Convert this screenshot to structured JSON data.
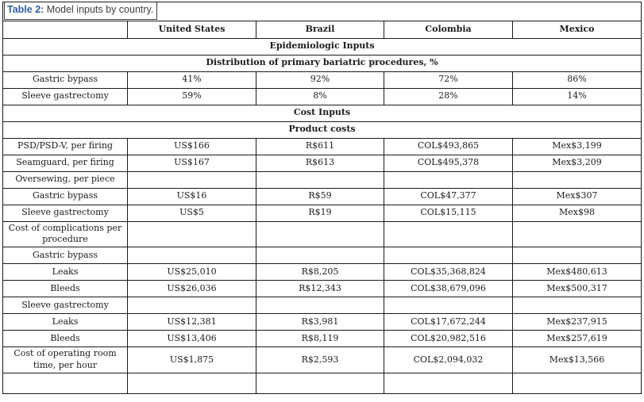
{
  "title": {
    "prefix": "Table 2:",
    "text": " Model inputs by country."
  },
  "colors": {
    "caption_blue": "#2E5FA7",
    "title_text": "#3F3F3F",
    "table_text": "#1C1C1C",
    "border": "#1A1A1A"
  },
  "columns": [
    "",
    "United States",
    "Brazil",
    "Colombia",
    "Mexico"
  ],
  "rows": [
    {
      "type": "section",
      "label": "Epidemiologic Inputs"
    },
    {
      "type": "section",
      "label": "Distribution of primary bariatric procedures, %"
    },
    {
      "type": "data",
      "label": "Gastric bypass",
      "values": [
        "41%",
        "92%",
        "72%",
        "86%"
      ]
    },
    {
      "type": "data",
      "label": "Sleeve gastrectomy",
      "values": [
        "59%",
        "8%",
        "28%",
        "14%"
      ]
    },
    {
      "type": "section",
      "label": "Cost Inputs"
    },
    {
      "type": "section",
      "label": "Product costs"
    },
    {
      "type": "data",
      "label": "PSD/PSD-V, per firing",
      "values": [
        "US$166",
        "R$611",
        "COL$493,865",
        "Mex$3,199"
      ]
    },
    {
      "type": "data",
      "label": "Seamguard, per firing",
      "values": [
        "US$167",
        "R$613",
        "COL$495,378",
        "Mex$3,209"
      ]
    },
    {
      "type": "data",
      "label": "Oversewing, per piece",
      "values": [
        "",
        "",
        "",
        ""
      ]
    },
    {
      "type": "data",
      "label": "Gastric bypass",
      "values": [
        "US$16",
        "R$59",
        "COL$47,377",
        "Mex$307"
      ]
    },
    {
      "type": "data",
      "label": "Sleeve gastrectomy",
      "values": [
        "US$5",
        "R$19",
        "COL$15,115",
        "Mex$98"
      ]
    },
    {
      "type": "data",
      "label": "Cost of complications per procedure",
      "values": [
        "",
        "",
        "",
        ""
      ]
    },
    {
      "type": "data",
      "label": "Gastric bypass",
      "values": [
        "",
        "",
        "",
        ""
      ]
    },
    {
      "type": "data",
      "label": "Leaks",
      "values": [
        "US$25,010",
        "R$8,205",
        "COL$35,368,824",
        "Mex$480,613"
      ]
    },
    {
      "type": "data",
      "label": "Bleeds",
      "values": [
        "US$26,036",
        "R$12,343",
        "COL$38,679,096",
        "Mex$500,317"
      ]
    },
    {
      "type": "data",
      "label": "Sleeve gastrectomy",
      "values": [
        "",
        "",
        "",
        ""
      ]
    },
    {
      "type": "data",
      "label": "Leaks",
      "values": [
        "US$12,381",
        "R$3,981",
        "COL$17,672,244",
        "Mex$237,915"
      ]
    },
    {
      "type": "data",
      "label": "Bleeds",
      "values": [
        "US$13,406",
        "R$8,119",
        "COL$20,982,516",
        "Mex$257,619"
      ]
    },
    {
      "type": "data",
      "label": "Cost of operating room time, per hour",
      "values": [
        "US$1,875",
        "R$2,593",
        "COL$2,094,032",
        "Mex$13,566"
      ]
    },
    {
      "type": "data",
      "label": "",
      "values": [
        "",
        "",
        "",
        ""
      ],
      "last": true
    }
  ]
}
